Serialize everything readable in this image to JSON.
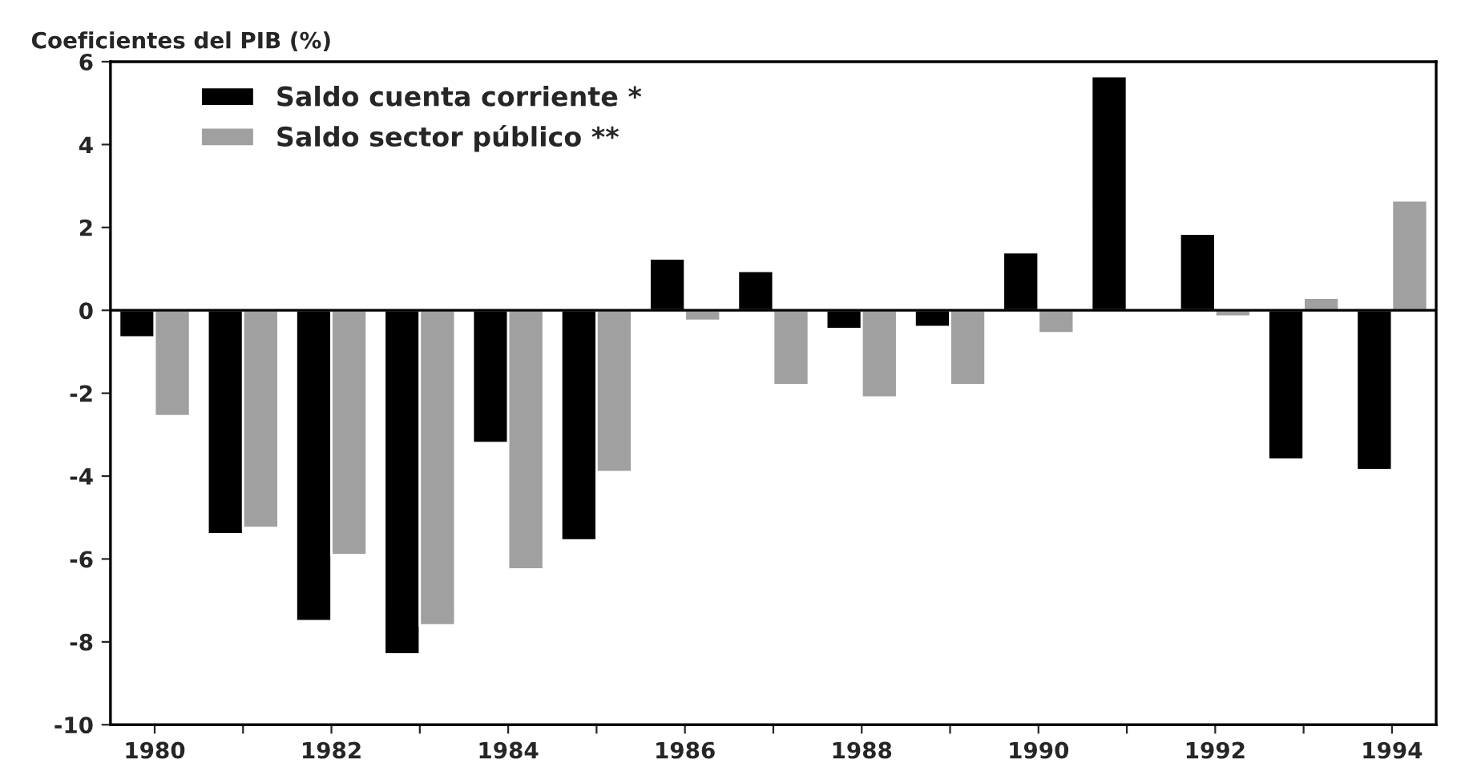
{
  "chart_data": {
    "type": "bar",
    "title": "Coeficientes del PIB (%)",
    "categories": [
      "1980",
      null,
      "1982",
      null,
      "1984",
      null,
      "1986",
      null,
      "1988",
      null,
      "1990",
      null,
      "1992",
      null,
      "1994"
    ],
    "series": [
      {
        "name": "Saldo cuenta corriente *",
        "color": "#000000",
        "values": [
          -0.65,
          -5.4,
          -7.5,
          -8.3,
          -3.2,
          -5.55,
          1.25,
          0.95,
          -0.45,
          -0.4,
          1.4,
          5.65,
          1.85,
          -3.6,
          -3.85
        ]
      },
      {
        "name": "Saldo sector público **",
        "color": "#a0a0a0",
        "values": [
          -2.55,
          -5.25,
          -5.9,
          -7.6,
          -6.25,
          -3.9,
          -0.25,
          -1.8,
          -2.1,
          -1.8,
          -0.55,
          null,
          -0.15,
          0.3,
          2.65
        ]
      }
    ],
    "ylim": [
      -10,
      6
    ],
    "yticks": [
      -10,
      -8,
      -6,
      -4,
      -2,
      0,
      2,
      4,
      6
    ],
    "legend": "top left"
  }
}
